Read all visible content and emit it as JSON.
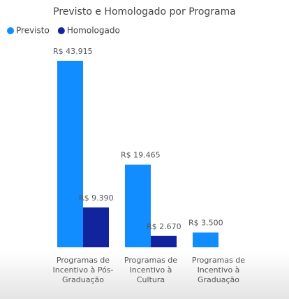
{
  "chart_data": {
    "type": "bar",
    "title": "Previsto e Homologado por Programa",
    "categories": [
      "Programas de Incentivo à Pós-Graduação",
      "Programas de Incentivo à Cultura",
      "Programas de Incentivo à Graduação"
    ],
    "series": [
      {
        "name": "Previsto",
        "color": "#118dff",
        "values": [
          43915,
          19465,
          3500
        ],
        "value_labels": [
          "R$ 43.915",
          "R$ 19.465",
          "R$ 3.500"
        ]
      },
      {
        "name": "Homologado",
        "color": "#12239e",
        "values": [
          9390,
          2670,
          null
        ],
        "value_labels": [
          "R$ 9.390",
          "R$ 2.670",
          null
        ]
      }
    ]
  }
}
